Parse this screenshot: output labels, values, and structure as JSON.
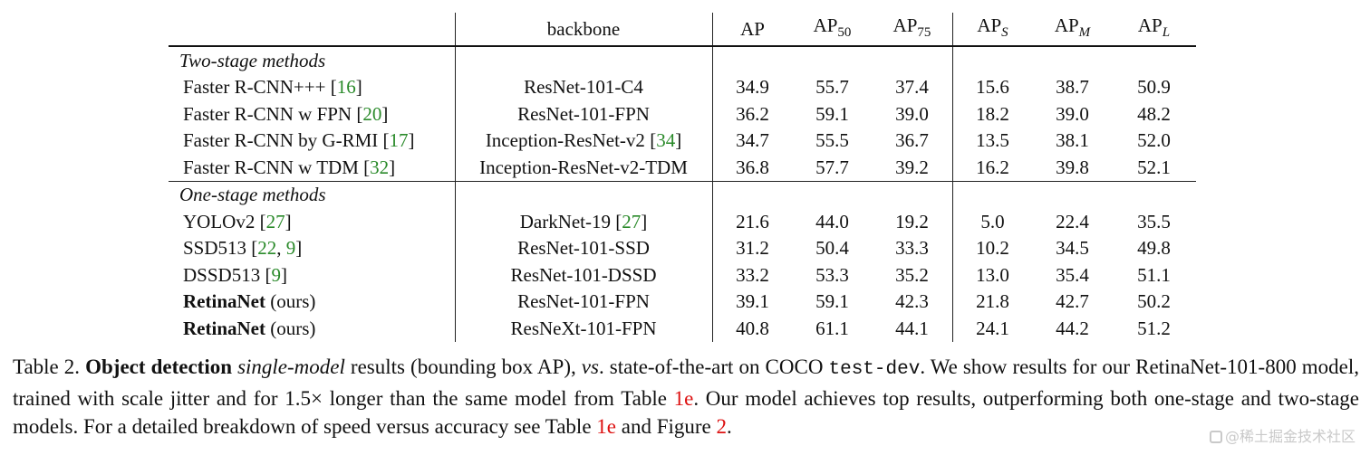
{
  "table": {
    "header": {
      "backbone": "backbone",
      "ap": "AP",
      "ap50_base": "AP",
      "ap50_sub": "50",
      "ap75_base": "AP",
      "ap75_sub": "75",
      "aps_base": "AP",
      "aps_sub": "S",
      "apm_base": "AP",
      "apm_sub": "M",
      "apl_base": "AP",
      "apl_sub": "L"
    },
    "groups": [
      {
        "title": "Two-stage methods",
        "rows": [
          {
            "method": "Faster R-CNN+++ ",
            "method_bold": "",
            "method_suffix": "",
            "cite_open": "[",
            "cites": [
              "16"
            ],
            "cite_close": "]",
            "backbone": "ResNet-101-C4",
            "backbone_cite": "",
            "ap": "34.9",
            "ap50": "55.7",
            "ap75": "37.4",
            "aps": "15.6",
            "apm": "38.7",
            "apl": "50.9"
          },
          {
            "method": "Faster R-CNN w FPN ",
            "cites": [
              "20"
            ],
            "backbone": "ResNet-101-FPN",
            "backbone_cite": "",
            "ap": "36.2",
            "ap50": "59.1",
            "ap75": "39.0",
            "aps": "18.2",
            "apm": "39.0",
            "apl": "48.2"
          },
          {
            "method": "Faster R-CNN by G-RMI ",
            "cites": [
              "17"
            ],
            "backbone": "Inception-ResNet-v2 ",
            "backbone_cite": "34",
            "ap": "34.7",
            "ap50": "55.5",
            "ap75": "36.7",
            "aps": "13.5",
            "apm": "38.1",
            "apl": "52.0"
          },
          {
            "method": "Faster R-CNN w TDM ",
            "cites": [
              "32"
            ],
            "backbone": "Inception-ResNet-v2-TDM",
            "backbone_cite": "",
            "ap": "36.8",
            "ap50": "57.7",
            "ap75": "39.2",
            "aps": "16.2",
            "apm": "39.8",
            "apl": "52.1",
            "bold": [
              "apl"
            ]
          }
        ]
      },
      {
        "title": "One-stage methods",
        "rows": [
          {
            "method": "YOLOv2 ",
            "cites": [
              "27"
            ],
            "backbone": "DarkNet-19 ",
            "backbone_cite": "27",
            "ap": "21.6",
            "ap50": "44.0",
            "ap75": "19.2",
            "aps": "5.0",
            "apm": "22.4",
            "apl": "35.5"
          },
          {
            "method": "SSD513 ",
            "cites": [
              "22",
              "9"
            ],
            "backbone": "ResNet-101-SSD",
            "backbone_cite": "",
            "ap": "31.2",
            "ap50": "50.4",
            "ap75": "33.3",
            "aps": "10.2",
            "apm": "34.5",
            "apl": "49.8"
          },
          {
            "method": "DSSD513 ",
            "cites": [
              "9"
            ],
            "backbone": "ResNet-101-DSSD",
            "backbone_cite": "",
            "ap": "33.2",
            "ap50": "53.3",
            "ap75": "35.2",
            "aps": "13.0",
            "apm": "35.4",
            "apl": "51.1"
          },
          {
            "method_bold": "RetinaNet",
            "method_suffix": " (ours)",
            "backbone": "ResNet-101-FPN",
            "backbone_cite": "",
            "ap": "39.1",
            "ap50": "59.1",
            "ap75": "42.3",
            "aps": "21.8",
            "apm": "42.7",
            "apl": "50.2"
          },
          {
            "method_bold": "RetinaNet",
            "method_suffix": " (ours)",
            "backbone": "ResNeXt-101-FPN",
            "backbone_cite": "",
            "ap": "40.8",
            "ap50": "61.1",
            "ap75": "44.1",
            "aps": "24.1",
            "apm": "44.2",
            "apl": "51.2",
            "bold": [
              "ap",
              "ap50",
              "ap75",
              "aps",
              "apm"
            ]
          }
        ]
      }
    ]
  },
  "caption": {
    "label": "Table 2. ",
    "bold": "Object detection",
    "sp1": " ",
    "italic1": "single-model",
    "t1": " results (bounding box AP), ",
    "italic2": "vs",
    "t2": ". state-of-the-art on COCO ",
    "mono": "test-dev",
    "t3": ". We show results for our RetinaNet-101-800 model, trained with scale jitter and for 1.5× longer than the same model from Table ",
    "ref1": "1e",
    "t4": ". Our model achieves top results, outperforming both one-stage and two-stage models. For a detailed breakdown of speed versus accuracy see Table ",
    "ref2": "1e",
    "t5": " and Figure ",
    "ref3": "2",
    "t6": "."
  },
  "watermark": "@稀土掘金技术社区",
  "colors": {
    "citation": "#2a8a2a",
    "reference": "#d11111"
  }
}
